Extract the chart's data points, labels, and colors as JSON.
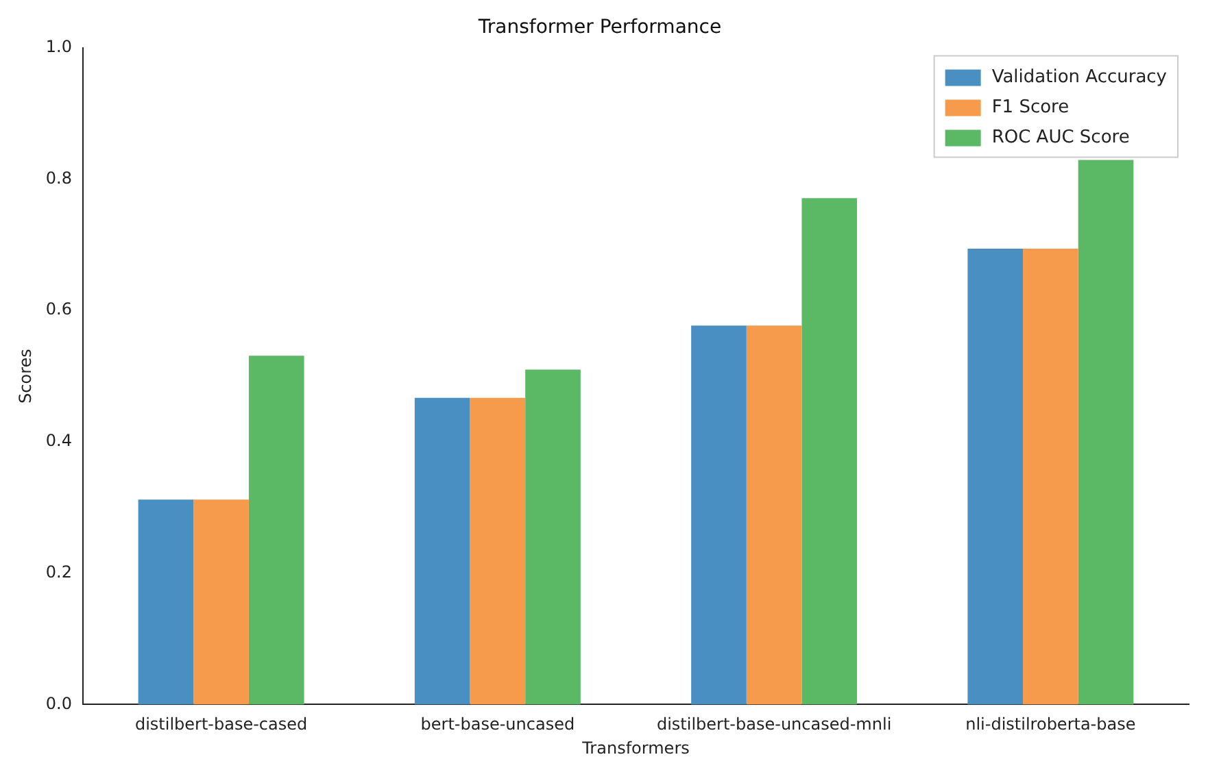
{
  "chart_data": {
    "type": "bar",
    "title": "Transformer Performance",
    "xlabel": "Transformers",
    "ylabel": "Scores",
    "categories": [
      "distilbert-base-cased",
      "bert-base-uncased",
      "distilbert-base-uncased-mnli",
      "nli-distilroberta-base"
    ],
    "series": [
      {
        "name": "Validation Accuracy",
        "color": "#4a8fc2",
        "values": [
          0.312,
          0.467,
          0.577,
          0.694
        ]
      },
      {
        "name": "F1 Score",
        "color": "#f69a4b",
        "values": [
          0.312,
          0.467,
          0.577,
          0.694
        ]
      },
      {
        "name": "ROC AUC Score",
        "color": "#5bb865",
        "values": [
          0.531,
          0.51,
          0.771,
          0.829
        ]
      }
    ],
    "ylim": [
      0,
      1
    ],
    "yticks": [
      {
        "value": 0,
        "label": "0.0"
      },
      0.2,
      0.4,
      0.6,
      0.8,
      {
        "value": 1,
        "label": "1.0"
      }
    ],
    "grid": false,
    "legend": "top right"
  }
}
